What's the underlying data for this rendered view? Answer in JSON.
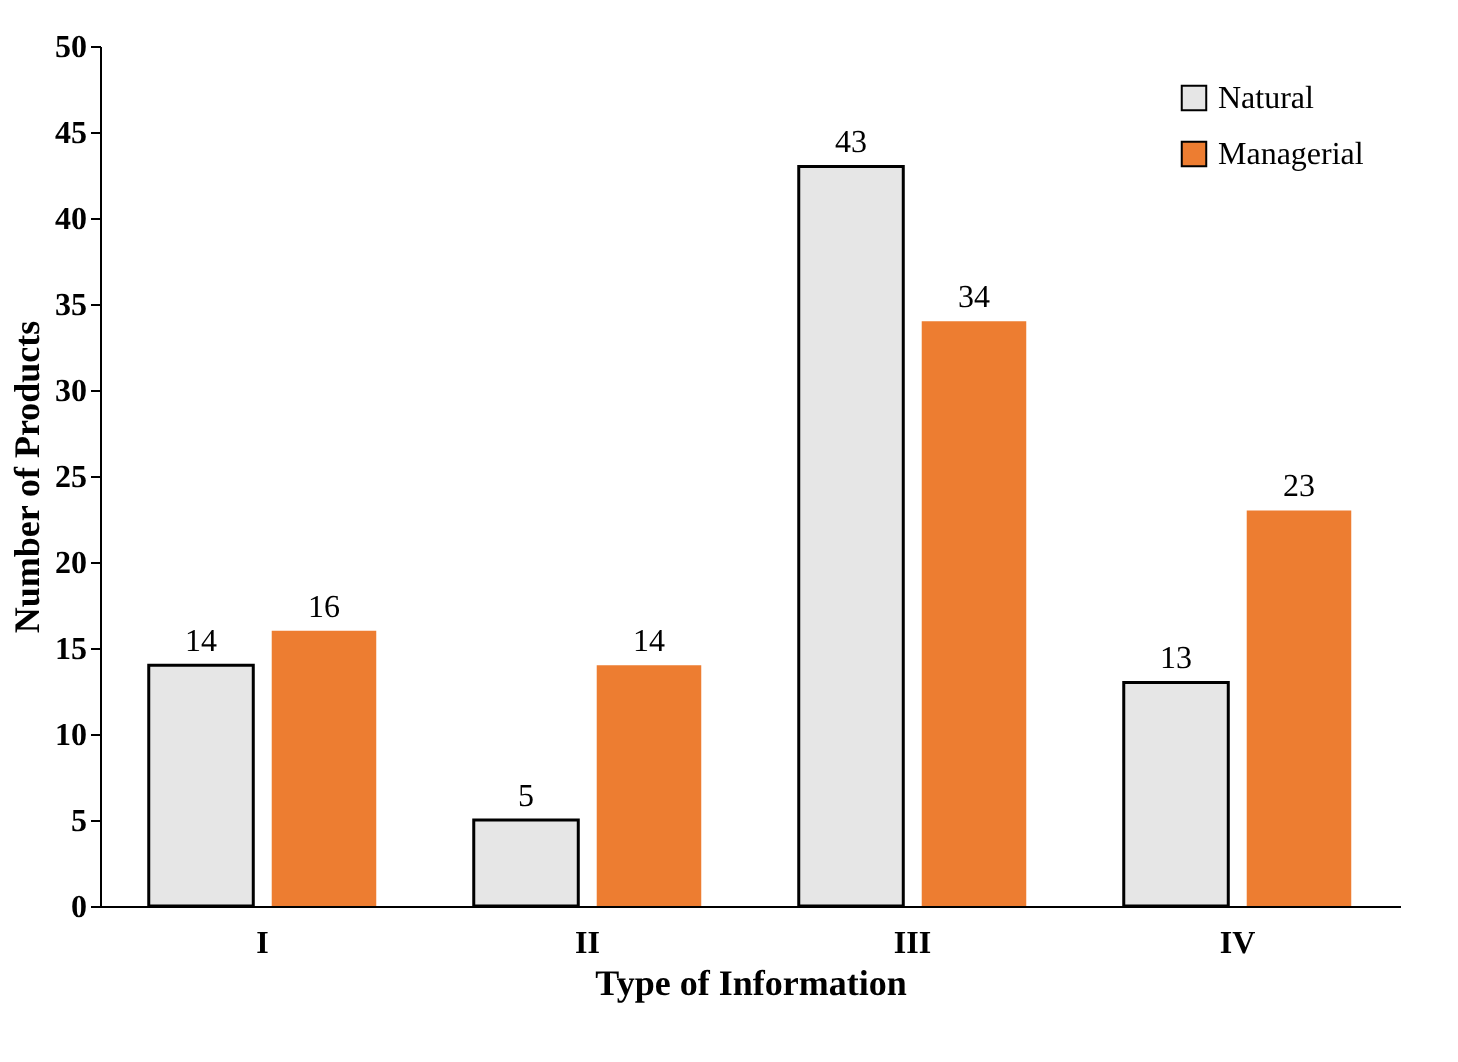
{
  "chart_data": {
    "type": "bar",
    "xlabel": "Type of Information",
    "ylabel": "Number of Products",
    "categories": [
      "I",
      "II",
      "III",
      "IV"
    ],
    "series": [
      {
        "name": "Natural",
        "color": "#e6e6e6",
        "values": [
          14,
          5,
          43,
          13
        ]
      },
      {
        "name": "Managerial",
        "color": "#ed7d31",
        "values": [
          16,
          14,
          34,
          23
        ]
      }
    ],
    "ylim": [
      0,
      50
    ],
    "yticks": [
      0,
      5,
      10,
      15,
      20,
      25,
      30,
      35,
      40,
      45,
      50
    ],
    "grid": false,
    "legend": "top right",
    "data_labels": true
  }
}
